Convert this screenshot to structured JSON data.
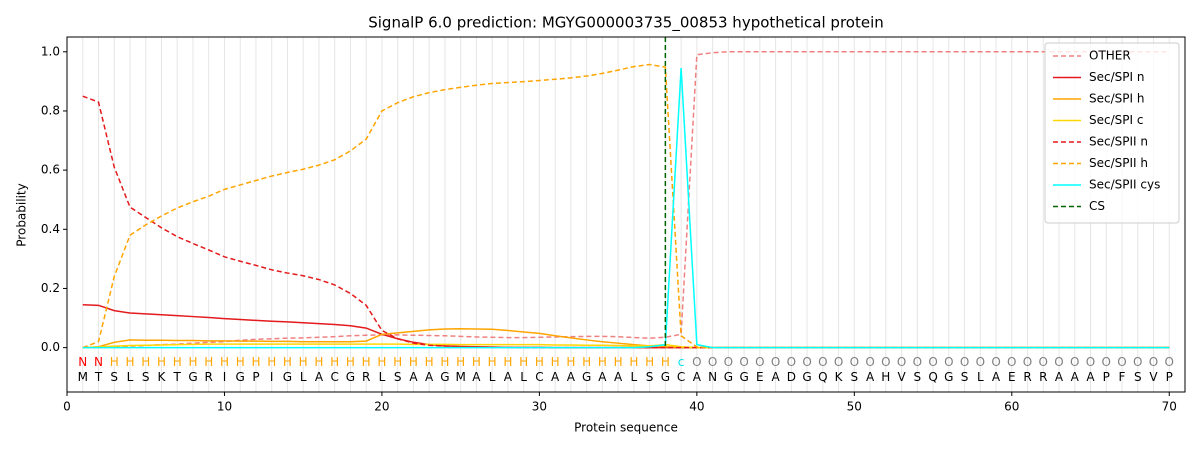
{
  "chart_data": {
    "type": "line",
    "title": "SignalP 6.0 prediction: MGYG000003735_00853 hypothetical protein",
    "x_label": "Protein sequence",
    "y_label": "Probability",
    "xlim": [
      0,
      71
    ],
    "ylim": [
      -0.15,
      1.05
    ],
    "xticks": [
      0,
      10,
      20,
      30,
      40,
      50,
      60,
      70
    ],
    "yticks": [
      {
        "value": 0,
        "label": "0.0"
      },
      {
        "value": 0.2,
        "label": "0.2"
      },
      {
        "value": 0.4,
        "label": "0.4"
      },
      {
        "value": 0.6,
        "label": "0.6"
      },
      {
        "value": 0.8,
        "label": "0.8"
      },
      {
        "value": 1,
        "label": "1.0"
      }
    ],
    "position_grid": true,
    "legend": "upper right",
    "x": [
      1,
      2,
      3,
      4,
      5,
      6,
      7,
      8,
      9,
      10,
      11,
      12,
      13,
      14,
      15,
      16,
      17,
      18,
      19,
      20,
      21,
      22,
      23,
      24,
      25,
      26,
      27,
      28,
      29,
      30,
      31,
      32,
      33,
      34,
      35,
      36,
      37,
      38,
      39,
      40,
      41,
      42,
      43,
      44,
      45,
      46,
      47,
      48,
      49,
      50,
      51,
      52,
      53,
      54,
      55,
      56,
      57,
      58,
      59,
      60,
      61,
      62,
      63,
      64,
      65,
      66,
      67,
      68,
      69,
      70
    ],
    "series": [
      {
        "name": "OTHER",
        "color": "#f08080",
        "dashed": true,
        "values": [
          0,
          0,
          0.003,
          0.005,
          0.007,
          0.01,
          0.012,
          0.015,
          0.018,
          0.02,
          0.025,
          0.028,
          0.03,
          0.032,
          0.033,
          0.035,
          0.037,
          0.04,
          0.042,
          0.043,
          0.043,
          0.042,
          0.041,
          0.04,
          0.038,
          0.036,
          0.035,
          0.034,
          0.034,
          0.035,
          0.036,
          0.037,
          0.038,
          0.038,
          0.037,
          0.034,
          0.032,
          0.035,
          0.045,
          0.99,
          0.997,
          1,
          1,
          1,
          1,
          1,
          1,
          1,
          1,
          1,
          1,
          1,
          1,
          1,
          1,
          1,
          1,
          1,
          1,
          1,
          1,
          1,
          1,
          1,
          1,
          1,
          1,
          1,
          1,
          1
        ]
      },
      {
        "name": "Sec/SPI n",
        "color": "#e41a1c",
        "dashed": false,
        "values": [
          0.145,
          0.143,
          0.125,
          0.117,
          0.114,
          0.111,
          0.108,
          0.105,
          0.102,
          0.098,
          0.095,
          0.092,
          0.089,
          0.087,
          0.084,
          0.081,
          0.078,
          0.074,
          0.066,
          0.045,
          0.03,
          0.018,
          0.01,
          0.006,
          0.004,
          0.003,
          0.002,
          0.001,
          0.001,
          0.001,
          0,
          0,
          0,
          0,
          0,
          0,
          0,
          0,
          0,
          0,
          0,
          0,
          0,
          0,
          0,
          0,
          0,
          0,
          0,
          0,
          0,
          0,
          0,
          0,
          0,
          0,
          0,
          0,
          0,
          0,
          0,
          0,
          0,
          0,
          0,
          0,
          0,
          0,
          0,
          0
        ]
      },
      {
        "name": "Sec/SPI h",
        "color": "#ffa500",
        "dashed": false,
        "values": [
          0,
          0.003,
          0.018,
          0.026,
          0.025,
          0.025,
          0.024,
          0.024,
          0.023,
          0.023,
          0.022,
          0.022,
          0.021,
          0.021,
          0.02,
          0.02,
          0.02,
          0.02,
          0.022,
          0.045,
          0.05,
          0.055,
          0.06,
          0.063,
          0.064,
          0.063,
          0.062,
          0.058,
          0.053,
          0.048,
          0.04,
          0.033,
          0.026,
          0.02,
          0.015,
          0.01,
          0.006,
          0.003,
          0.001,
          0,
          0,
          0,
          0,
          0,
          0,
          0,
          0,
          0,
          0,
          0,
          0,
          0,
          0,
          0,
          0,
          0,
          0,
          0,
          0,
          0,
          0,
          0,
          0,
          0,
          0,
          0,
          0,
          0,
          0,
          0
        ]
      },
      {
        "name": "Sec/SPI c",
        "color": "#ffd700",
        "dashed": false,
        "values": [
          0,
          0.002,
          0.005,
          0.007,
          0.008,
          0.009,
          0.01,
          0.011,
          0.012,
          0.012,
          0.012,
          0.012,
          0.012,
          0.012,
          0.012,
          0.012,
          0.012,
          0.012,
          0.012,
          0.012,
          0.012,
          0.011,
          0.011,
          0.011,
          0.01,
          0.01,
          0.01,
          0.01,
          0.01,
          0.01,
          0.009,
          0.009,
          0.008,
          0.008,
          0.007,
          0.006,
          0.006,
          0.01,
          0.003,
          0,
          0,
          0,
          0,
          0,
          0,
          0,
          0,
          0,
          0,
          0,
          0,
          0,
          0,
          0,
          0,
          0,
          0,
          0,
          0,
          0,
          0,
          0,
          0,
          0,
          0,
          0,
          0,
          0,
          0,
          0
        ]
      },
      {
        "name": "Sec/SPII n",
        "color": "#e41a1c",
        "dashed": true,
        "values": [
          0.85,
          0.83,
          0.61,
          0.475,
          0.44,
          0.405,
          0.375,
          0.352,
          0.33,
          0.307,
          0.292,
          0.278,
          0.263,
          0.252,
          0.243,
          0.23,
          0.212,
          0.183,
          0.143,
          0.058,
          0.03,
          0.015,
          0.008,
          0.005,
          0.003,
          0.002,
          0.001,
          0.001,
          0,
          0,
          0,
          0,
          0,
          0,
          0,
          0,
          0,
          0,
          0,
          0,
          0,
          0,
          0,
          0,
          0,
          0,
          0,
          0,
          0,
          0,
          0,
          0,
          0,
          0,
          0,
          0,
          0,
          0,
          0,
          0,
          0,
          0,
          0,
          0,
          0,
          0,
          0,
          0,
          0,
          0
        ]
      },
      {
        "name": "Sec/SPII h",
        "color": "#ffa500",
        "dashed": true,
        "values": [
          0,
          0.02,
          0.24,
          0.38,
          0.415,
          0.445,
          0.472,
          0.493,
          0.512,
          0.535,
          0.55,
          0.565,
          0.58,
          0.592,
          0.603,
          0.617,
          0.635,
          0.665,
          0.705,
          0.8,
          0.828,
          0.848,
          0.862,
          0.872,
          0.88,
          0.887,
          0.893,
          0.896,
          0.899,
          0.903,
          0.907,
          0.912,
          0.918,
          0.927,
          0.938,
          0.95,
          0.957,
          0.948,
          0.04,
          0.002,
          0,
          0,
          0,
          0,
          0,
          0,
          0,
          0,
          0,
          0,
          0,
          0,
          0,
          0,
          0,
          0,
          0,
          0,
          0,
          0,
          0,
          0,
          0,
          0,
          0,
          0,
          0,
          0,
          0,
          0
        ]
      },
      {
        "name": "Sec/SPII cys",
        "color": "#00ffff",
        "dashed": false,
        "values": [
          0,
          0,
          0,
          0,
          0,
          0,
          0,
          0,
          0,
          0,
          0,
          0,
          0,
          0,
          0,
          0,
          0,
          0,
          0,
          0,
          0,
          0,
          0,
          0,
          0,
          0,
          0,
          0,
          0,
          0,
          0,
          0,
          0,
          0,
          0,
          0,
          0.003,
          0.01,
          0.945,
          0.01,
          0,
          0,
          0,
          0,
          0,
          0,
          0,
          0,
          0,
          0,
          0,
          0,
          0,
          0,
          0,
          0,
          0,
          0,
          0,
          0,
          0,
          0,
          0,
          0,
          0,
          0,
          0,
          0,
          0,
          0
        ]
      }
    ],
    "cs": {
      "name": "CS",
      "color": "#006400",
      "x": 38
    },
    "sequence": [
      "M",
      "T",
      "S",
      "L",
      "S",
      "K",
      "T",
      "G",
      "R",
      "I",
      "G",
      "P",
      "I",
      "G",
      "L",
      "A",
      "C",
      "G",
      "R",
      "L",
      "S",
      "A",
      "A",
      "G",
      "M",
      "A",
      "L",
      "A",
      "L",
      "C",
      "A",
      "A",
      "G",
      "A",
      "A",
      "L",
      "S",
      "G",
      "C",
      "A",
      "N",
      "G",
      "G",
      "E",
      "A",
      "D",
      "G",
      "Q",
      "K",
      "S",
      "A",
      "H",
      "V",
      "S",
      "Q",
      "G",
      "S",
      "L",
      "A",
      "E",
      "R",
      "R",
      "A",
      "A",
      "A",
      "P",
      "F",
      "S",
      "V",
      "P"
    ],
    "residue_labels": [
      "N",
      "N",
      "H",
      "H",
      "H",
      "H",
      "H",
      "H",
      "H",
      "H",
      "H",
      "H",
      "H",
      "H",
      "H",
      "H",
      "H",
      "H",
      "H",
      "H",
      "H",
      "H",
      "H",
      "H",
      "H",
      "H",
      "H",
      "H",
      "H",
      "H",
      "H",
      "H",
      "H",
      "H",
      "H",
      "H",
      "H",
      "H",
      "c",
      "O",
      "O",
      "O",
      "O",
      "O",
      "O",
      "O",
      "O",
      "O",
      "O",
      "O",
      "O",
      "O",
      "O",
      "O",
      "O",
      "O",
      "O",
      "O",
      "O",
      "O",
      "O",
      "O",
      "O",
      "O",
      "O",
      "O",
      "O",
      "O",
      "O",
      "O"
    ],
    "label_colors": {
      "N": "#ff0000",
      "H": "#ffa500",
      "c": "#00e5ee",
      "O": "#808080"
    }
  }
}
